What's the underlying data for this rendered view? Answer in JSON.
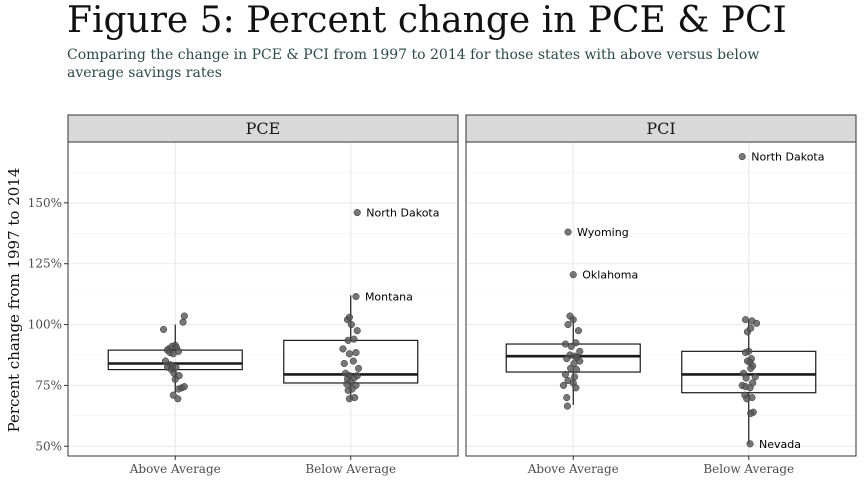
{
  "title": "Figure 5: Percent change in PCE & PCI",
  "subtitle": "Comparing the change in PCE & PCI from 1997 to 2014 for those states with above versus below average savings rates",
  "colors": {
    "point": "#555555",
    "strip_bg": "#d9d9d9",
    "grid": "#ebebeb",
    "panel_border": "#333333"
  },
  "chart_data": {
    "type": "box",
    "ylabel": "Percent change from 1997 to 2014",
    "ylim": [
      0.46,
      1.75
    ],
    "yticks": [
      0.5,
      0.75,
      1.0,
      1.25,
      1.5
    ],
    "ytick_labels": [
      "50%",
      "75%",
      "100%",
      "125%",
      "150%"
    ],
    "categories": [
      "Above Average",
      "Below Average"
    ],
    "grid": true,
    "panels": [
      {
        "label": "PCE",
        "boxes": [
          {
            "category": "Above Average",
            "q1": 0.815,
            "median": 0.84,
            "q3": 0.895,
            "whisker_low": 0.72,
            "whisker_high": 1.0,
            "points": [
              [
                -0.18,
                0.98
              ],
              [
                0.12,
                1.01
              ],
              [
                0.14,
                1.035
              ],
              [
                -0.1,
                0.9
              ],
              [
                -0.05,
                0.91
              ],
              [
                0.0,
                0.915
              ],
              [
                0.02,
                0.905
              ],
              [
                -0.12,
                0.895
              ],
              [
                -0.08,
                0.885
              ],
              [
                -0.03,
                0.88
              ],
              [
                0.05,
                0.89
              ],
              [
                -0.15,
                0.85
              ],
              [
                -0.08,
                0.835
              ],
              [
                -0.04,
                0.83
              ],
              [
                0.01,
                0.825
              ],
              [
                -0.12,
                0.825
              ],
              [
                -0.06,
                0.815
              ],
              [
                -0.02,
                0.8
              ],
              [
                0.06,
                0.79
              ],
              [
                0.0,
                0.775
              ],
              [
                0.05,
                0.735
              ],
              [
                0.1,
                0.74
              ],
              [
                0.14,
                0.745
              ],
              [
                -0.03,
                0.71
              ],
              [
                0.04,
                0.695
              ]
            ],
            "labels": []
          },
          {
            "category": "Below Average",
            "q1": 0.76,
            "median": 0.795,
            "q3": 0.935,
            "whisker_low": 0.69,
            "whisker_high": 1.12,
            "points": [
              [
                0.1,
                1.46
              ],
              [
                0.08,
                1.115
              ],
              [
                -0.05,
                1.02
              ],
              [
                -0.02,
                1.03
              ],
              [
                0.01,
                1.0
              ],
              [
                0.1,
                0.975
              ],
              [
                -0.04,
                0.935
              ],
              [
                0.05,
                0.94
              ],
              [
                -0.12,
                0.9
              ],
              [
                -0.02,
                0.88
              ],
              [
                0.08,
                0.885
              ],
              [
                0.04,
                0.85
              ],
              [
                -0.1,
                0.84
              ],
              [
                0.12,
                0.82
              ],
              [
                -0.08,
                0.8
              ],
              [
                -0.02,
                0.79
              ],
              [
                0.05,
                0.78
              ],
              [
                -0.05,
                0.775
              ],
              [
                0.1,
                0.79
              ],
              [
                0.0,
                0.765
              ],
              [
                -0.06,
                0.755
              ],
              [
                0.08,
                0.75
              ],
              [
                0.02,
                0.735
              ],
              [
                -0.04,
                0.73
              ],
              [
                0.06,
                0.7
              ],
              [
                -0.02,
                0.695
              ]
            ],
            "labels": [
              {
                "text": "North Dakota",
                "value": 1.46
              },
              {
                "text": "Montana",
                "value": 1.115
              }
            ]
          }
        ]
      },
      {
        "label": "PCI",
        "boxes": [
          {
            "category": "Above Average",
            "q1": 0.805,
            "median": 0.87,
            "q3": 0.92,
            "whisker_low": 0.67,
            "whisker_high": 1.03,
            "points": [
              [
                -0.08,
                1.38
              ],
              [
                0.0,
                1.205
              ],
              [
                -0.05,
                1.035
              ],
              [
                0.0,
                1.02
              ],
              [
                -0.08,
                1.0
              ],
              [
                0.08,
                0.975
              ],
              [
                -0.12,
                0.92
              ],
              [
                0.04,
                0.925
              ],
              [
                -0.03,
                0.91
              ],
              [
                0.1,
                0.89
              ],
              [
                -0.05,
                0.875
              ],
              [
                0.02,
                0.87
              ],
              [
                0.06,
                0.865
              ],
              [
                -0.1,
                0.86
              ],
              [
                0.1,
                0.85
              ],
              [
                0.01,
                0.84
              ],
              [
                -0.04,
                0.82
              ],
              [
                0.05,
                0.815
              ],
              [
                -0.12,
                0.795
              ],
              [
                0.02,
                0.785
              ],
              [
                -0.08,
                0.77
              ],
              [
                0.0,
                0.76
              ],
              [
                -0.15,
                0.75
              ],
              [
                0.04,
                0.74
              ],
              [
                -0.1,
                0.7
              ],
              [
                -0.09,
                0.665
              ]
            ],
            "labels": [
              {
                "text": "Wyoming",
                "value": 1.38
              },
              {
                "text": "Oklahoma",
                "value": 1.205
              }
            ]
          },
          {
            "category": "Below Average",
            "q1": 0.72,
            "median": 0.795,
            "q3": 0.89,
            "whisker_low": 0.51,
            "whisker_high": 1.02,
            "points": [
              [
                -0.1,
                1.69
              ],
              [
                -0.05,
                1.02
              ],
              [
                0.05,
                1.015
              ],
              [
                0.12,
                1.005
              ],
              [
                -0.02,
                0.97
              ],
              [
                0.03,
                0.985
              ],
              [
                0.0,
                0.89
              ],
              [
                -0.05,
                0.885
              ],
              [
                0.04,
                0.86
              ],
              [
                -0.02,
                0.85
              ],
              [
                0.02,
                0.845
              ],
              [
                0.06,
                0.83
              ],
              [
                0.03,
                0.82
              ],
              [
                -0.08,
                0.8
              ],
              [
                0.1,
                0.785
              ],
              [
                -0.04,
                0.78
              ],
              [
                0.06,
                0.76
              ],
              [
                -0.1,
                0.75
              ],
              [
                -0.05,
                0.745
              ],
              [
                0.02,
                0.74
              ],
              [
                -0.06,
                0.71
              ],
              [
                0.05,
                0.7
              ],
              [
                -0.03,
                0.695
              ],
              [
                0.07,
                0.64
              ],
              [
                0.03,
                0.635
              ],
              [
                0.02,
                0.51
              ]
            ],
            "labels": [
              {
                "text": "North Dakota",
                "value": 1.69
              },
              {
                "text": "Nevada",
                "value": 0.51
              }
            ]
          }
        ]
      }
    ]
  }
}
